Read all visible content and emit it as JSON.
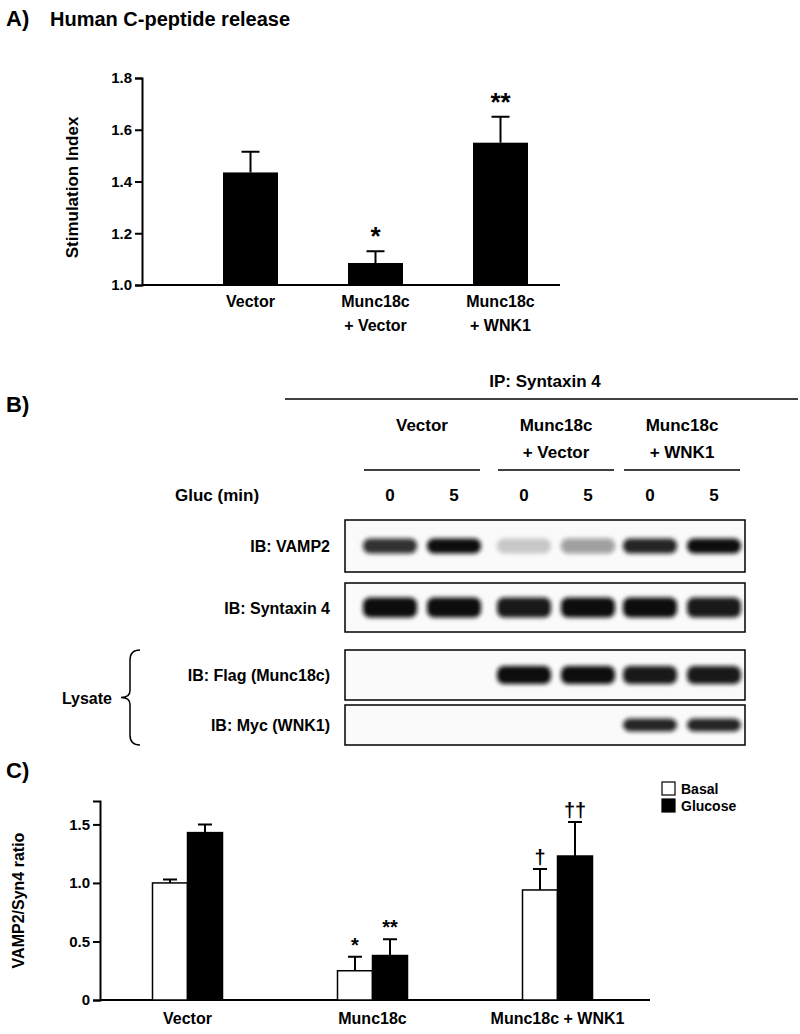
{
  "chart_data": [
    {
      "type": "bar",
      "panel_label": "A)",
      "title": "Human C-peptide release",
      "y_label": "Stimulation Index",
      "categories": [
        "Vector",
        "Munc18c\n+ Vector",
        "Munc18c\n+ WNK1"
      ],
      "values": [
        1.435,
        1.085,
        1.55
      ],
      "errors": [
        0.08,
        0.045,
        0.1
      ],
      "significance": [
        null,
        "*",
        "**"
      ],
      "color": "#000000",
      "ylim": [
        1.0,
        1.8
      ],
      "yticks": [
        {
          "value": 1.0,
          "label": "1.0"
        },
        1.2,
        1.4,
        1.6,
        {
          "value": 1.8,
          "label": "1.8"
        }
      ]
    },
    {
      "type": "bar",
      "panel_label": "C)",
      "y_label": "VAMP2/Syn4 ratio",
      "categories": [
        "Vector",
        "Munc18c",
        "Munc18c + WNK1"
      ],
      "series": [
        {
          "name": "Basal",
          "color": "#ffffff",
          "values": [
            1.0,
            0.25,
            0.94
          ],
          "errors": [
            0.03,
            0.12,
            0.18
          ],
          "significance": [
            null,
            "*",
            "†"
          ]
        },
        {
          "name": "Glucose",
          "color": "#000000",
          "values": [
            1.43,
            0.38,
            1.23
          ],
          "errors": [
            0.07,
            0.14,
            0.29
          ],
          "significance": [
            null,
            "**",
            "††"
          ]
        }
      ],
      "legend": "top-right",
      "ylim": [
        0,
        1.7
      ],
      "yticks": [
        0,
        0.5,
        {
          "value": 1.0,
          "label": "1.0"
        },
        1.5
      ]
    }
  ],
  "blot": {
    "panel_label": "B)",
    "header": "IP: Syntaxin 4",
    "groups": [
      "Vector",
      "Munc18c\n+ Vector",
      "Munc18c\n+ WNK1"
    ],
    "time_label": "Gluc (min)",
    "times": [
      0,
      5,
      0,
      5,
      0,
      5
    ],
    "lysate_label": "Lysate",
    "rows": [
      {
        "label": "IB: VAMP2",
        "intensity": [
          0.85,
          1.0,
          0.2,
          0.4,
          0.9,
          1.0
        ]
      },
      {
        "label": "IB: Syntaxin 4",
        "intensity": [
          1.0,
          1.0,
          0.95,
          1.0,
          1.0,
          0.95
        ]
      },
      {
        "label": "IB: Flag (Munc18c)",
        "intensity": [
          0,
          0,
          1.0,
          1.0,
          0.95,
          0.95
        ]
      },
      {
        "label": "IB: Myc (WNK1)",
        "intensity": [
          0,
          0,
          0,
          0,
          0.9,
          0.9
        ]
      }
    ]
  }
}
